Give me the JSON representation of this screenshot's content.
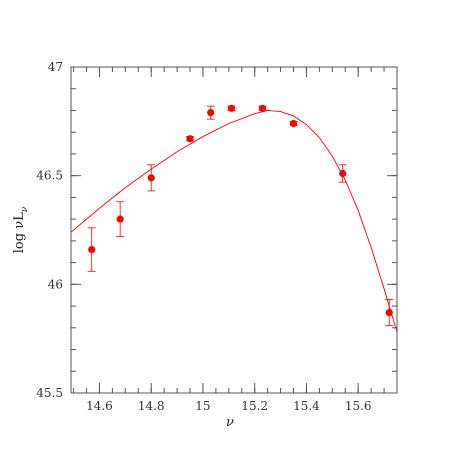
{
  "chart_data": {
    "type": "scatter",
    "title": "",
    "xlabel": "ν",
    "ylabel": "log νL",
    "ylabel_sub": "ν",
    "xlim": [
      14.49,
      15.75
    ],
    "ylim": [
      45.5,
      47.0
    ],
    "xticks": [
      {
        "value": 14.6,
        "label": "14.6"
      },
      {
        "value": 14.8,
        "label": "14.8"
      },
      {
        "value": 15.0,
        "label": "15"
      },
      {
        "value": 15.2,
        "label": "15.2"
      },
      {
        "value": 15.4,
        "label": "15.4"
      },
      {
        "value": 15.6,
        "label": "15.6"
      }
    ],
    "yticks": [
      {
        "value": 45.5,
        "label": "45.5"
      },
      {
        "value": 46.0,
        "label": "46"
      },
      {
        "value": 46.5,
        "label": "46.5"
      },
      {
        "value": 47.0,
        "label": "47"
      }
    ],
    "x_minor_step": 0.05,
    "y_minor_step": 0.1,
    "grid": false,
    "series": [
      {
        "kind": "points_with_errorbars",
        "color": "#ff0000",
        "points": [
          {
            "x": 14.57,
            "y": 46.16,
            "err": 0.1
          },
          {
            "x": 14.68,
            "y": 46.3,
            "err": 0.08
          },
          {
            "x": 14.8,
            "y": 46.49,
            "err": 0.06
          },
          {
            "x": 14.95,
            "y": 46.67,
            "err": 0.01
          },
          {
            "x": 15.03,
            "y": 46.79,
            "err": 0.03
          },
          {
            "x": 15.11,
            "y": 46.81,
            "err": 0.01
          },
          {
            "x": 15.23,
            "y": 46.81,
            "err": 0.01
          },
          {
            "x": 15.35,
            "y": 46.74,
            "err": 0.01
          },
          {
            "x": 15.54,
            "y": 46.51,
            "err": 0.04
          },
          {
            "x": 15.72,
            "y": 45.87,
            "err": 0.06
          }
        ]
      },
      {
        "kind": "model_curve",
        "color": "#ff0000",
        "curve": [
          {
            "x": 14.49,
            "y": 46.24
          },
          {
            "x": 14.6,
            "y": 46.35
          },
          {
            "x": 14.7,
            "y": 46.445
          },
          {
            "x": 14.8,
            "y": 46.53
          },
          {
            "x": 14.9,
            "y": 46.61
          },
          {
            "x": 15.0,
            "y": 46.68
          },
          {
            "x": 15.1,
            "y": 46.74
          },
          {
            "x": 15.2,
            "y": 46.785
          },
          {
            "x": 15.25,
            "y": 46.8
          },
          {
            "x": 15.3,
            "y": 46.795
          },
          {
            "x": 15.35,
            "y": 46.775
          },
          {
            "x": 15.4,
            "y": 46.735
          },
          {
            "x": 15.45,
            "y": 46.675
          },
          {
            "x": 15.5,
            "y": 46.59
          },
          {
            "x": 15.55,
            "y": 46.48
          },
          {
            "x": 15.6,
            "y": 46.34
          },
          {
            "x": 15.65,
            "y": 46.17
          },
          {
            "x": 15.7,
            "y": 45.98
          },
          {
            "x": 15.75,
            "y": 45.78
          }
        ]
      }
    ]
  }
}
